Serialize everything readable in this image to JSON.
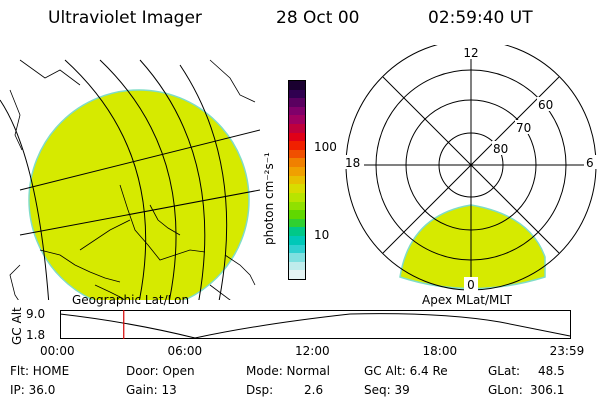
{
  "header": {
    "instrument": "Ultraviolet Imager",
    "date": "28 Oct 00",
    "time": "02:59:40 UT"
  },
  "colors": {
    "fill": "#d6ea00",
    "fill_edge": "#7fdcc8",
    "grid": "#000000",
    "cursor": "#d40000"
  },
  "left_map": {
    "caption": "Geographic Lat/Lon"
  },
  "colorbar": {
    "unit_label": "photon cm⁻²s⁻¹",
    "ticks": [
      "100",
      "10"
    ],
    "scale": "log",
    "colors": [
      "#1a0030",
      "#300050",
      "#5a0060",
      "#80006a",
      "#a00060",
      "#c0003c",
      "#e00018",
      "#f02000",
      "#f05000",
      "#f08000",
      "#f0a000",
      "#e8c000",
      "#d8dc00",
      "#b8e400",
      "#90e000",
      "#60d800",
      "#30d030",
      "#00c888",
      "#00c8b8",
      "#30d0d0",
      "#80e0e0",
      "#c0ecec",
      "#e4f4f4"
    ]
  },
  "polar_plot": {
    "caption": "Apex MLat/MLT",
    "mlt_labels": {
      "top": "12",
      "left": "18",
      "right": "6",
      "bottom": "0"
    },
    "lat_labels": [
      "60",
      "70",
      "80"
    ]
  },
  "timeline": {
    "y_label": "GC Alt",
    "y_ticks": [
      "9.0",
      "1.8"
    ],
    "x_ticks": [
      "00:00",
      "06:00",
      "12:00",
      "18:00",
      "23:59"
    ],
    "x_hours": [
      0,
      6,
      12,
      18,
      23.983
    ],
    "cursor_hour": 3.0,
    "cursor_label": "02:59:40 UT"
  },
  "status": {
    "flt": "Flt: HOME",
    "ip": "IP: 36.0",
    "door": "Door: Open",
    "gain": "Gain: 13",
    "mode": "Mode: Normal",
    "dsp": "Dsp:",
    "dsp_value": "2.6",
    "gc_alt": "GC Alt: 6.4 Re",
    "seq": "Seq: 39",
    "glat": "GLat:",
    "glat_value": "48.5",
    "glon": "GLon:",
    "glon_value": "306.1"
  }
}
